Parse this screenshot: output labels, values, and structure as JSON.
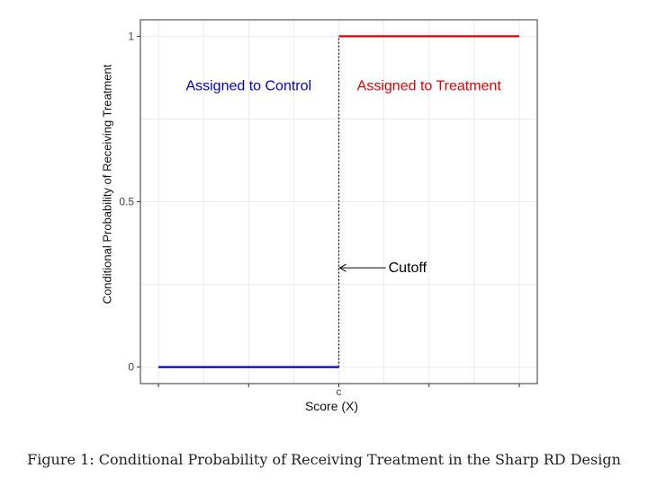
{
  "chart_data": {
    "type": "line",
    "title": "",
    "xlabel": "Score (X)",
    "ylabel": "Conditional Probability of Receiving Treatment",
    "xlim": [
      -2.2,
      2.2
    ],
    "ylim": [
      -0.05,
      1.05
    ],
    "x_ticks": [
      {
        "value": 0,
        "label": "c"
      }
    ],
    "y_ticks": [
      {
        "value": 0,
        "label": "0"
      },
      {
        "value": 0.5,
        "label": "0.5"
      },
      {
        "value": 1,
        "label": "1"
      }
    ],
    "series": [
      {
        "color": "#0000cc",
        "points": [
          [
            -2,
            0
          ],
          [
            0,
            0
          ]
        ]
      },
      {
        "color": "#e60000",
        "points": [
          [
            0,
            1
          ],
          [
            2,
            1
          ]
        ]
      }
    ],
    "cutoff_x": 0,
    "annotations": [
      {
        "key": "control",
        "text": "Assigned to Control",
        "color": "#0000cc",
        "x": -1,
        "y": 0.85
      },
      {
        "key": "treatment",
        "text": "Assigned to Treatment",
        "color": "#e60000",
        "x": 1,
        "y": 0.85
      },
      {
        "key": "cutoff",
        "text": "Cutoff",
        "color": "#000000",
        "x": 0.55,
        "y": 0.3
      }
    ],
    "grid": true
  },
  "caption": "Figure 1: Conditional Probability of Receiving Treatment in the Sharp RD Design"
}
